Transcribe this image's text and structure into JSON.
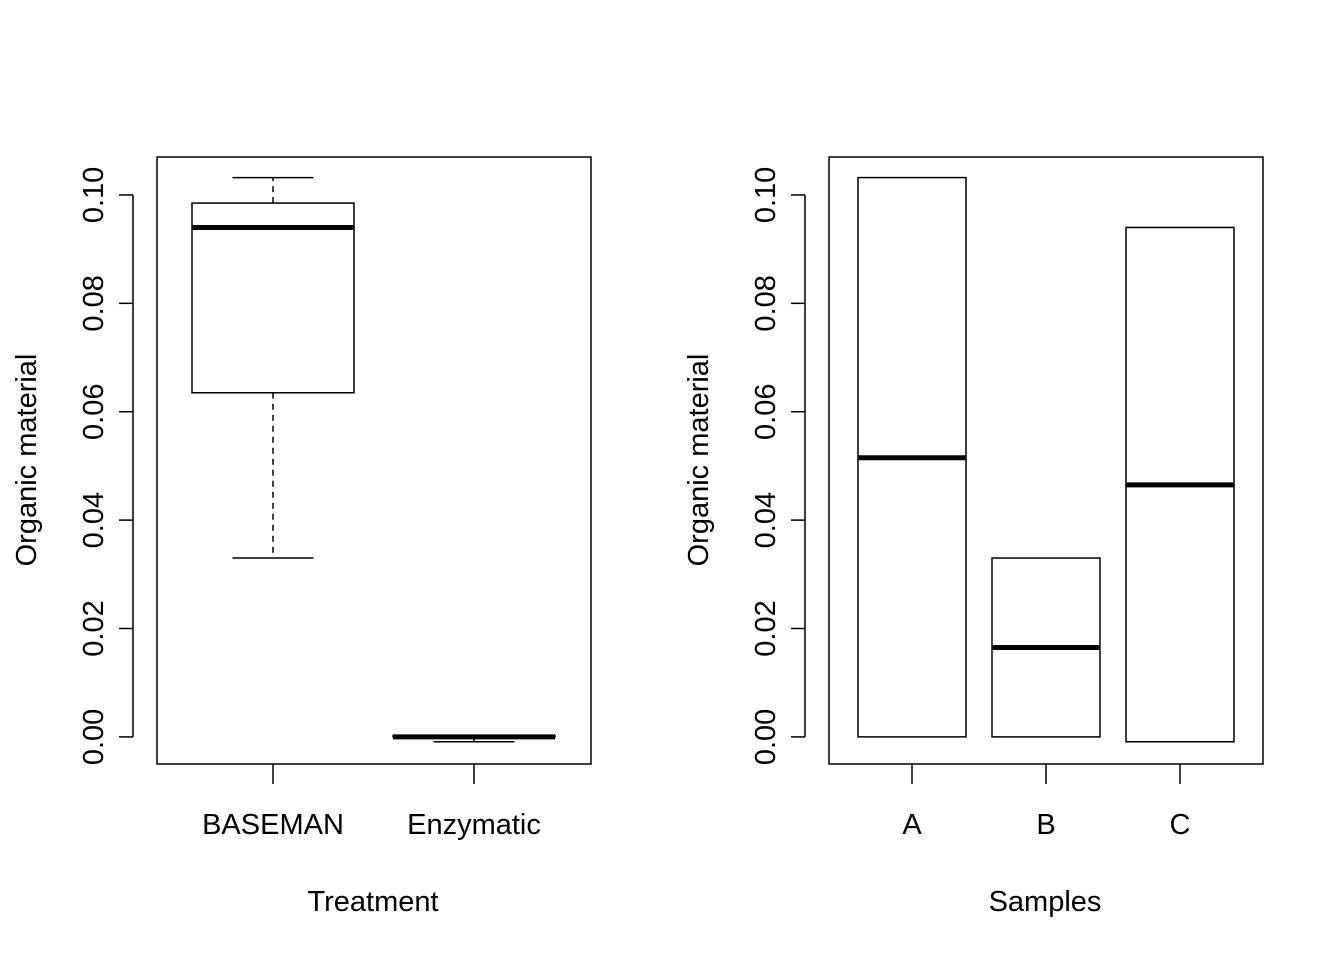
{
  "chart_data": [
    {
      "type": "boxplot",
      "xlabel": "Treatment",
      "ylabel": "Organic material",
      "ylim": [
        -0.005,
        0.107
      ],
      "yticks": [
        0.0,
        0.02,
        0.04,
        0.06,
        0.08,
        0.1
      ],
      "ytick_labels": [
        "0.00",
        "0.02",
        "0.04",
        "0.06",
        "0.08",
        "0.10"
      ],
      "categories": [
        "BASEMAN",
        "Enzymatic"
      ],
      "boxes": [
        {
          "category": "BASEMAN",
          "whisker_low": 0.033,
          "q1": 0.0635,
          "median": 0.094,
          "q3": 0.0985,
          "whisker_high": 0.1032
        },
        {
          "category": "Enzymatic",
          "whisker_low": -0.0009,
          "q1": 0.0,
          "median": 0.0,
          "q3": 0.0002,
          "whisker_high": 0.0002
        }
      ],
      "grid": false,
      "legend": "none"
    },
    {
      "type": "boxplot",
      "xlabel": "Samples",
      "ylabel": "Organic material",
      "ylim": [
        -0.005,
        0.107
      ],
      "yticks": [
        0.0,
        0.02,
        0.04,
        0.06,
        0.08,
        0.1
      ],
      "ytick_labels": [
        "0.00",
        "0.02",
        "0.04",
        "0.06",
        "0.08",
        "0.10"
      ],
      "categories": [
        "A",
        "B",
        "C"
      ],
      "boxes": [
        {
          "category": "A",
          "whisker_low": 0.0,
          "q1": 0.0,
          "median": 0.0515,
          "q3": 0.1032,
          "whisker_high": 0.1032
        },
        {
          "category": "B",
          "whisker_low": 0.0,
          "q1": 0.0,
          "median": 0.0165,
          "q3": 0.033,
          "whisker_high": 0.033
        },
        {
          "category": "C",
          "whisker_low": -0.0009,
          "q1": -0.0009,
          "median": 0.0465,
          "q3": 0.094,
          "whisker_high": 0.094
        }
      ],
      "grid": false,
      "legend": "none"
    }
  ]
}
